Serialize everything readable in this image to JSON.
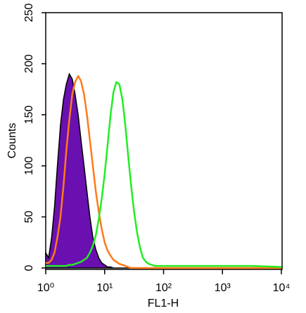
{
  "chart_data": {
    "type": "line",
    "xscale": "log",
    "xlabel": "FL1-H",
    "ylabel": "Counts",
    "x": [
      1,
      1.12,
      1.26,
      1.41,
      1.58,
      1.78,
      2,
      2.24,
      2.51,
      2.82,
      3.16,
      3.55,
      3.98,
      4.47,
      5.01,
      5.62,
      6.31,
      7.08,
      7.94,
      8.91,
      10,
      11.2,
      12.6,
      14.1,
      15.8,
      17.8,
      20,
      22.4,
      25.1,
      28.2,
      31.6,
      35.5,
      39.8,
      44.7,
      50.1,
      56.2,
      63.1,
      70.8,
      79.4,
      89.1,
      100,
      316,
      1000,
      3160,
      10000
    ],
    "series": [
      {
        "color": "#6a0fb0",
        "fill": true,
        "values": [
          15,
          10,
          30,
          60,
          100,
          140,
          165,
          180,
          190,
          185,
          170,
          150,
          125,
          100,
          75,
          50,
          30,
          18,
          10,
          5,
          3,
          1,
          1,
          0,
          0,
          0,
          0,
          0,
          0,
          0,
          0,
          0,
          0,
          0,
          0,
          0,
          0,
          0,
          0,
          0,
          0,
          0,
          0,
          0,
          0
        ]
      },
      {
        "color": "#ff7a1a",
        "fill": false,
        "values": [
          5,
          5,
          8,
          15,
          30,
          50,
          80,
          115,
          145,
          170,
          182,
          188,
          183,
          170,
          150,
          125,
          100,
          75,
          55,
          38,
          25,
          17,
          12,
          8,
          6,
          4,
          3,
          2,
          1,
          0,
          0,
          0,
          0,
          0,
          0,
          0,
          0,
          0,
          0,
          0,
          0,
          0,
          0,
          0,
          0
        ]
      },
      {
        "color": "#22ee22",
        "fill": false,
        "values": [
          2,
          2,
          2,
          2,
          2,
          2,
          2,
          2,
          3,
          3,
          4,
          5,
          6,
          8,
          10,
          15,
          22,
          32,
          48,
          68,
          92,
          120,
          150,
          172,
          182,
          180,
          165,
          140,
          110,
          80,
          55,
          35,
          20,
          10,
          6,
          4,
          3,
          2,
          2,
          2,
          2,
          2,
          2,
          2,
          1
        ]
      }
    ],
    "xlim": [
      1,
      10000
    ],
    "xticks": [
      {
        "value": 1,
        "label": "10⁰"
      },
      {
        "value": 10,
        "label": "10¹"
      },
      {
        "value": 100,
        "label": "10²"
      },
      {
        "value": 1000,
        "label": "10³"
      },
      {
        "value": 10000,
        "label": "10⁴"
      }
    ],
    "ylim": [
      0,
      250
    ],
    "yticks": [
      0,
      50,
      100,
      150,
      200,
      250
    ]
  }
}
